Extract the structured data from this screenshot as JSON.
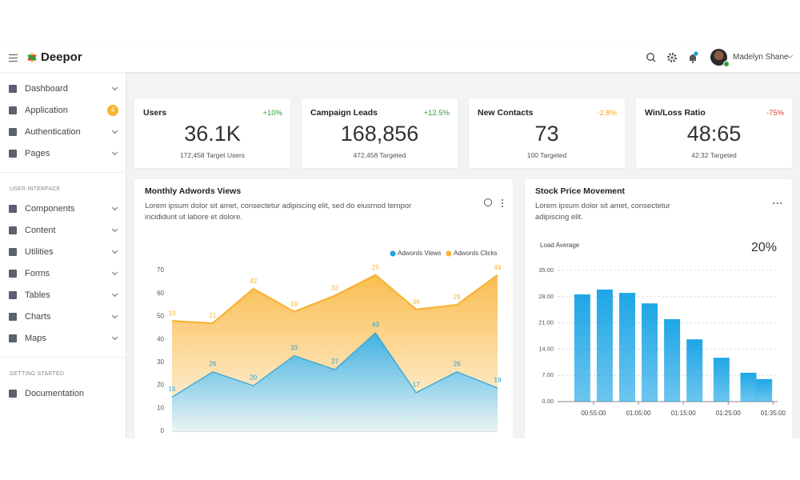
{
  "header": {
    "brand": "Deepor",
    "user": "Madelyn Shane"
  },
  "sidebar": {
    "sections": [
      {
        "items": [
          {
            "label": "Dashboard"
          },
          {
            "label": "Application",
            "badge": 4
          },
          {
            "label": "Authentication"
          },
          {
            "label": "Pages"
          }
        ]
      },
      {
        "heading": "USER INTERFACE",
        "items": [
          {
            "label": "Components"
          },
          {
            "label": "Content"
          },
          {
            "label": "Utilities"
          },
          {
            "label": "Forms"
          },
          {
            "label": "Tables"
          },
          {
            "label": "Charts"
          },
          {
            "label": "Maps"
          }
        ]
      },
      {
        "heading": "GETTING STARTED",
        "items": [
          {
            "label": "Documentation"
          }
        ]
      }
    ]
  },
  "cards": [
    {
      "title": "Users",
      "change": "+10%",
      "change_color": "#2e9e3e",
      "value": "36.1K",
      "target": "172,458 Target Users"
    },
    {
      "title": "Campaign Leads",
      "change": "+12.5%",
      "change_color": "#2e9e3e",
      "value": "168,856",
      "target": "472,458 Targeted"
    },
    {
      "title": "New Contacts",
      "change": "-2.8%",
      "change_color": "#f5a623",
      "value": "73",
      "target": "100 Targeted"
    },
    {
      "title": "Win/Loss Ratio",
      "change": "-75%",
      "change_color": "#e53935",
      "value": "48:65",
      "target": "42:32 Targeted"
    }
  ],
  "chart_data": [
    {
      "type": "area",
      "stacked": true,
      "title": "Monthly Adwords Views",
      "subtitle": "Lorem ipsum dolor sit amet, consectetur adipiscing elit, sed do eiusmod tempor incididunt ut labore et dolore.",
      "legend": "top-right",
      "ylim": [
        0,
        70
      ],
      "yticks": [
        0,
        10,
        20,
        30,
        40,
        50,
        60,
        70
      ],
      "series": [
        {
          "name": "Adwords Views",
          "color": "#1fa3dd",
          "values": [
            15,
            26,
            20,
            33,
            27,
            43,
            17,
            26,
            19
          ]
        },
        {
          "name": "Adwords Clicks",
          "color": "#f9b233",
          "values": [
            33,
            21,
            42,
            19,
            32,
            25,
            36,
            29,
            49
          ]
        }
      ]
    },
    {
      "type": "bar",
      "title": "Stock Price Movement",
      "subtitle": "Lorem ipsum dolor sit amet, consectetur adipiscing elit.",
      "annotation": "Load Average",
      "highlight": "20%",
      "color": "#1ea6e6",
      "grid": true,
      "x": [
        52.5,
        57.5,
        62.5,
        67.5,
        72.5,
        77.5,
        83.5,
        89.5,
        93
      ],
      "values": [
        28.6,
        29.9,
        29.0,
        26.2,
        22.0,
        16.6,
        11.7,
        7.7,
        6.0
      ],
      "xlim": [
        47,
        96
      ],
      "xticks": [
        {
          "value": 55,
          "label": "00:55:00"
        },
        {
          "value": 65,
          "label": "01:05:00"
        },
        {
          "value": 75,
          "label": "01:15:00"
        },
        {
          "value": 85,
          "label": "01:25:00"
        },
        {
          "value": 95,
          "label": "01:35:00"
        }
      ],
      "ylim": [
        0,
        35
      ],
      "yticks": [
        {
          "value": 0,
          "label": "0.00"
        },
        {
          "value": 7,
          "label": "7.00"
        },
        {
          "value": 14,
          "label": "14.00"
        },
        {
          "value": 21,
          "label": "21.00"
        },
        {
          "value": 28,
          "label": "28.00"
        },
        {
          "value": 35,
          "label": "35.00"
        }
      ]
    }
  ]
}
